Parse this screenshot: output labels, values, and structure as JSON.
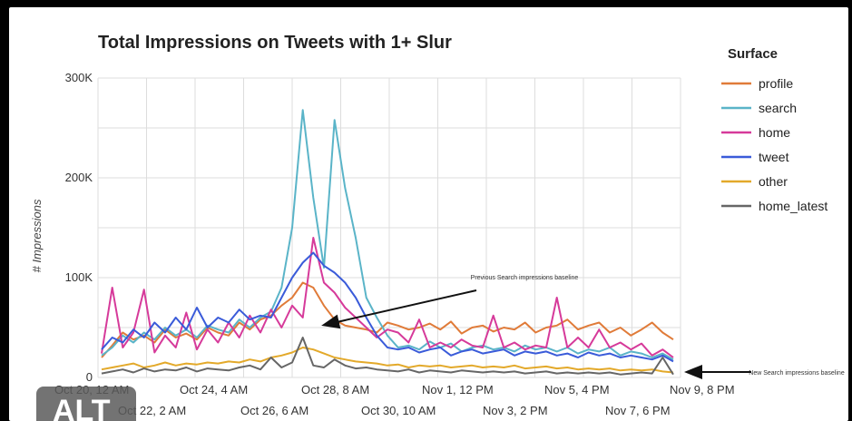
{
  "badge": {
    "label": "ALT"
  },
  "chart_data": {
    "type": "line",
    "title": "Total Impressions on Tweets with 1+ Slur",
    "ylabel": "# Impressions",
    "xlabel": "",
    "ylim": [
      0,
      300000
    ],
    "y_ticks": [
      "0",
      "100K",
      "200K",
      "300K"
    ],
    "y_tick_values": [
      0,
      100000,
      200000,
      300000
    ],
    "x_ticks": [
      "Oct 20, 12 AM",
      "Oct 22, 2 AM",
      "Oct 24, 4 AM",
      "Oct 26, 6 AM",
      "Oct 28, 8 AM",
      "Oct 30, 10 AM",
      "Nov 1, 12 PM",
      "Nov 3, 2 PM",
      "Nov 5, 4 PM",
      "Nov 7, 6 PM",
      "Nov 9, 8 PM"
    ],
    "grid": true,
    "legend_title": "Surface",
    "legend_position": "right",
    "annotations": [
      {
        "text": "Previous Search impressions baseline",
        "target": {
          "x": "Oct 28, 8 AM",
          "y": 50000
        }
      },
      {
        "text": "New Search impressions baseline",
        "target": {
          "x": "Nov 9, 8 PM",
          "y": 5000
        }
      }
    ],
    "series": [
      {
        "name": "profile",
        "color": "#e07b39",
        "values": [
          20,
          32,
          45,
          38,
          42,
          35,
          48,
          40,
          44,
          38,
          50,
          45,
          42,
          55,
          48,
          58,
          62,
          72,
          80,
          95,
          90,
          72,
          58,
          52,
          50,
          48,
          45,
          55,
          52,
          48,
          50,
          54,
          48,
          56,
          44,
          50,
          52,
          46,
          50,
          48,
          55,
          45,
          50,
          52,
          58,
          48,
          52,
          55,
          45,
          50,
          42,
          48,
          55,
          45,
          38
        ]
      },
      {
        "name": "search",
        "color": "#5ab4c8",
        "values": [
          22,
          30,
          42,
          35,
          45,
          38,
          50,
          42,
          48,
          40,
          52,
          48,
          45,
          58,
          50,
          60,
          66,
          90,
          150,
          268,
          180,
          110,
          258,
          190,
          140,
          80,
          60,
          42,
          30,
          32,
          28,
          36,
          30,
          34,
          26,
          30,
          32,
          28,
          30,
          26,
          32,
          28,
          30,
          26,
          30,
          24,
          28,
          26,
          30,
          22,
          26,
          24,
          20,
          24,
          18
        ]
      },
      {
        "name": "home",
        "color": "#d63a9a",
        "values": [
          24,
          90,
          30,
          45,
          88,
          25,
          42,
          30,
          65,
          28,
          48,
          35,
          55,
          40,
          62,
          45,
          68,
          50,
          72,
          60,
          140,
          95,
          85,
          70,
          60,
          50,
          40,
          48,
          45,
          35,
          58,
          30,
          35,
          30,
          38,
          32,
          30,
          62,
          30,
          35,
          28,
          32,
          30,
          80,
          30,
          40,
          30,
          48,
          30,
          35,
          28,
          34,
          22,
          28,
          20
        ]
      },
      {
        "name": "tweet",
        "color": "#3a5bd9",
        "values": [
          28,
          40,
          35,
          48,
          40,
          55,
          45,
          60,
          48,
          70,
          50,
          60,
          55,
          68,
          58,
          62,
          60,
          80,
          100,
          115,
          125,
          112,
          105,
          95,
          80,
          60,
          42,
          30,
          28,
          30,
          25,
          28,
          30,
          22,
          26,
          28,
          24,
          26,
          28,
          22,
          26,
          24,
          26,
          22,
          24,
          20,
          25,
          22,
          24,
          20,
          22,
          20,
          18,
          22,
          16
        ]
      },
      {
        "name": "other",
        "color": "#e3a92a",
        "values": [
          8,
          10,
          12,
          14,
          10,
          12,
          15,
          12,
          14,
          13,
          15,
          14,
          16,
          15,
          18,
          16,
          20,
          22,
          25,
          30,
          28,
          24,
          20,
          18,
          16,
          15,
          14,
          12,
          13,
          10,
          12,
          11,
          12,
          10,
          11,
          12,
          10,
          11,
          10,
          12,
          9,
          10,
          11,
          9,
          10,
          8,
          9,
          8,
          9,
          7,
          8,
          7,
          8,
          6,
          5
        ]
      },
      {
        "name": "home_latest",
        "color": "#666666",
        "values": [
          4,
          6,
          8,
          5,
          9,
          6,
          8,
          7,
          10,
          6,
          9,
          8,
          7,
          10,
          12,
          8,
          20,
          10,
          15,
          40,
          12,
          10,
          18,
          12,
          9,
          10,
          8,
          7,
          6,
          8,
          5,
          7,
          6,
          5,
          7,
          6,
          5,
          6,
          5,
          6,
          4,
          5,
          6,
          4,
          5,
          4,
          5,
          4,
          5,
          3,
          4,
          5,
          4,
          20,
          3
        ]
      }
    ]
  }
}
